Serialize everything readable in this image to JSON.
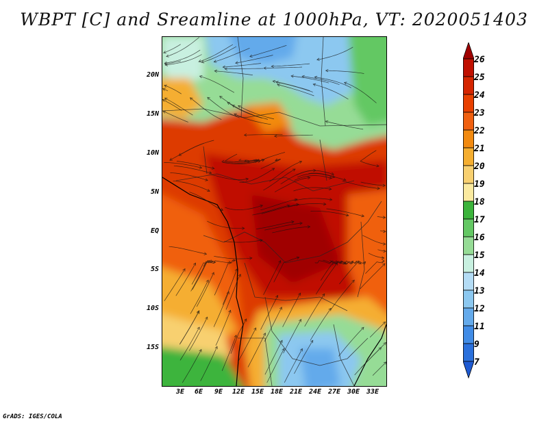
{
  "title": "WBPT [C] and Sreamline at 1000hPa, VT: 2020051403",
  "map": {
    "variable": "Wet-bulb potential temperature",
    "units": "C",
    "lat_labels": [
      "20N",
      "15N",
      "10N",
      "5N",
      "EQ",
      "5S",
      "10S",
      "15S"
    ],
    "lon_labels": [
      "3E",
      "6E",
      "9E",
      "12E",
      "15E",
      "18E",
      "21E",
      "24E",
      "27E",
      "30E",
      "33E"
    ]
  },
  "colorbar": {
    "levels": [
      "26",
      "25",
      "24",
      "23",
      "22",
      "21",
      "20",
      "19",
      "18",
      "17",
      "16",
      "15",
      "14",
      "13",
      "12",
      "11",
      "9",
      "7"
    ],
    "colors": [
      "#a00000",
      "#c01000",
      "#d52500",
      "#e84000",
      "#f06010",
      "#f28a10",
      "#f5ae30",
      "#f8d070",
      "#fbeaa0",
      "#3cb43c",
      "#64c864",
      "#96dc96",
      "#c8f0e0",
      "#b4dcf5",
      "#8cc8f0",
      "#64aaeb",
      "#418ce6",
      "#2a70dc",
      "#1e5ad2"
    ]
  },
  "credit": "GrADS: IGES/COLA"
}
